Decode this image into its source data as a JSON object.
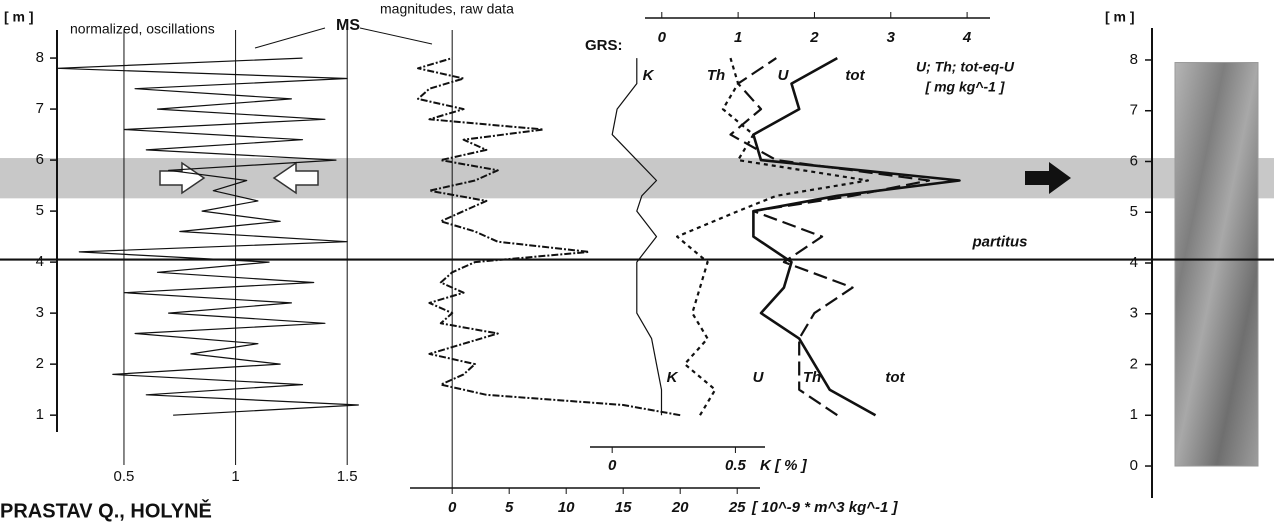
{
  "figure_title": "PRASTAV Q., HOLYNĚ",
  "shared_label": "MS",
  "marker": {
    "label": "partitus",
    "depth": 4.05
  },
  "highlight": [
    5.25,
    6.04
  ],
  "chart_data": [
    {
      "type": "line",
      "title": "normalized, oscillations",
      "ylabel": "[ m ]",
      "ylim": [
        0.67,
        8.55
      ],
      "yticks": [
        1,
        2,
        3,
        4,
        5,
        6,
        7,
        8
      ],
      "xlim": [
        0.2,
        1.75
      ],
      "xticks": [
        0.5,
        1,
        1.5
      ],
      "grid": true,
      "series": [
        {
          "color": "#111111",
          "dash": "solid",
          "depth": [
            1.0,
            1.2,
            1.4,
            1.6,
            1.8,
            2.0,
            2.2,
            2.4,
            2.6,
            2.8,
            3.0,
            3.2,
            3.4,
            3.6,
            3.8,
            4.0,
            4.2,
            4.4,
            4.6,
            4.8,
            5.0,
            5.2,
            5.4,
            5.6,
            5.8,
            6.0,
            6.2,
            6.4,
            6.6,
            6.8,
            7.0,
            7.2,
            7.4,
            7.6,
            7.8,
            8.0
          ],
          "values": [
            0.72,
            1.55,
            0.6,
            1.3,
            0.45,
            1.2,
            0.8,
            1.1,
            0.55,
            1.4,
            0.7,
            1.25,
            0.5,
            1.35,
            0.65,
            1.15,
            0.3,
            1.5,
            0.75,
            1.2,
            0.85,
            1.1,
            0.9,
            1.05,
            0.7,
            1.45,
            0.6,
            1.3,
            0.5,
            1.4,
            0.65,
            1.25,
            0.55,
            1.5,
            0.2,
            1.3
          ]
        }
      ]
    },
    {
      "type": "line",
      "title": "magnitudes, raw data",
      "xlabel": "[ 10^-9 * m^3 kg^-1 ]",
      "xlim": [
        -3.7,
        27
      ],
      "xticks": [
        0,
        5,
        10,
        15,
        20,
        25
      ],
      "zero_line": true,
      "series": [
        {
          "color": "#111111",
          "dash": "dash-dot",
          "depth": [
            1.0,
            1.2,
            1.4,
            1.6,
            1.8,
            2.0,
            2.2,
            2.4,
            2.6,
            2.8,
            3.0,
            3.2,
            3.4,
            3.6,
            3.8,
            4.0,
            4.2,
            4.4,
            4.6,
            4.8,
            5.0,
            5.2,
            5.4,
            5.6,
            5.8,
            6.0,
            6.2,
            6.4,
            6.6,
            6.8,
            7.0,
            7.2,
            7.4,
            7.6,
            7.8,
            8.0
          ],
          "values": [
            20,
            15,
            3,
            -1,
            1,
            2,
            -2,
            1,
            4,
            -1,
            0,
            -2,
            1,
            -1,
            0,
            2,
            12,
            4,
            2,
            -1,
            1,
            3,
            -2,
            2,
            4,
            -1,
            3,
            1,
            8,
            -2,
            1,
            -3,
            -2,
            1,
            -3,
            0
          ]
        }
      ]
    },
    {
      "type": "line",
      "title": "GRS:",
      "xlabel": "U; Th; tot-eq-U",
      "xunit": "[ mg kg^-1 ]",
      "xlim": [
        -0.22,
        4.3
      ],
      "xticks": [
        0,
        1,
        2,
        3,
        4
      ],
      "x2label": "K [ % ]",
      "x2lim": [
        -0.09,
        0.62
      ],
      "x2ticks": [
        0,
        0.5
      ],
      "series": [
        {
          "name": "K",
          "axis": "x2",
          "color": "#111111",
          "dash": "solid",
          "depth": [
            1.0,
            1.5,
            2.0,
            2.5,
            3.0,
            3.5,
            4.0,
            4.5,
            5.0,
            5.3,
            5.6,
            6.0,
            6.5,
            7.0,
            7.5,
            8.0
          ],
          "values": [
            0.2,
            0.2,
            0.18,
            0.16,
            0.1,
            0.1,
            0.1,
            0.18,
            0.1,
            0.12,
            0.18,
            0.1,
            0.0,
            0.02,
            0.1,
            0.1
          ]
        },
        {
          "name": "Th",
          "color": "#111111",
          "dash": "long-dash",
          "depth": [
            1.0,
            1.5,
            2.0,
            2.5,
            3.0,
            3.5,
            4.0,
            4.5,
            5.0,
            5.3,
            5.6,
            6.0,
            6.5,
            7.0,
            7.5,
            8.0
          ],
          "values": [
            2.3,
            1.8,
            1.8,
            1.8,
            2.0,
            2.5,
            1.6,
            2.1,
            1.2,
            2.5,
            3.5,
            1.5,
            0.9,
            1.3,
            1.0,
            1.5
          ]
        },
        {
          "name": "U",
          "color": "#111111",
          "dash": "dot",
          "depth": [
            1.0,
            1.5,
            2.0,
            2.5,
            3.0,
            3.5,
            4.0,
            4.5,
            5.0,
            5.3,
            5.6,
            6.0,
            6.5,
            7.0,
            7.5,
            8.0
          ],
          "values": [
            0.5,
            0.7,
            0.3,
            0.6,
            0.4,
            0.5,
            0.6,
            0.2,
            1.0,
            1.5,
            2.7,
            1.0,
            1.2,
            0.8,
            1.0,
            0.9
          ]
        },
        {
          "name": "tot",
          "color": "#111111",
          "dash": "bold",
          "depth": [
            1.0,
            1.5,
            2.0,
            2.5,
            3.0,
            3.5,
            4.0,
            4.5,
            5.0,
            5.3,
            5.6,
            6.0,
            6.5,
            7.0,
            7.5,
            8.0
          ],
          "values": [
            2.8,
            2.2,
            2.0,
            1.8,
            1.3,
            1.6,
            1.7,
            1.2,
            1.2,
            2.3,
            3.9,
            1.3,
            1.2,
            1.8,
            1.7,
            2.3
          ]
        }
      ]
    },
    {
      "type": "core-photo",
      "ylabel": "[ m ]",
      "ylim": [
        -0.63,
        8.63
      ],
      "yticks": [
        0,
        1,
        2,
        3,
        4,
        5,
        6,
        7,
        8
      ],
      "photo_range": [
        0,
        7.95
      ],
      "color": "#9a9a9a"
    }
  ]
}
